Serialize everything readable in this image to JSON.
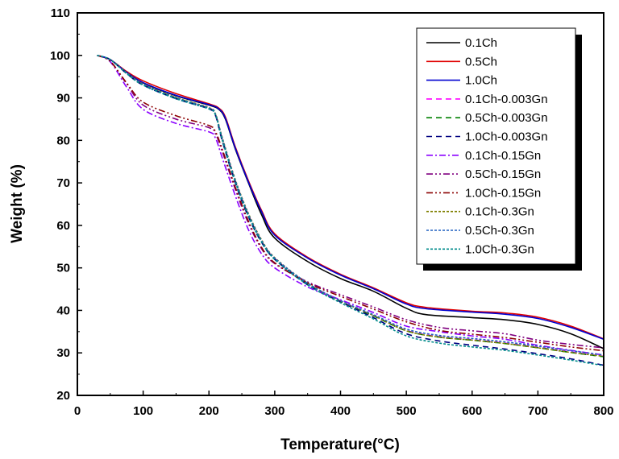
{
  "chart_data": {
    "type": "line",
    "title": "",
    "xlabel": "Temperature(°C)",
    "ylabel": "Weight (%)",
    "xlim": [
      0,
      800
    ],
    "ylim": [
      20,
      110
    ],
    "xticks": [
      "0",
      "100",
      "200",
      "300",
      "400",
      "500",
      "600",
      "700",
      "800"
    ],
    "yticks": [
      "20",
      "30",
      "40",
      "50",
      "60",
      "70",
      "80",
      "90",
      "100",
      "110"
    ],
    "grid": false,
    "legend_position": "top-right",
    "series": [
      {
        "name": "0.1Ch",
        "color": "#000000",
        "dash": "solid",
        "points": [
          [
            30,
            100
          ],
          [
            50,
            99
          ],
          [
            75,
            96
          ],
          [
            100,
            93.5
          ],
          [
            150,
            90.5
          ],
          [
            200,
            88.3
          ],
          [
            215,
            87.3
          ],
          [
            225,
            85
          ],
          [
            240,
            78
          ],
          [
            260,
            70
          ],
          [
            280,
            62.5
          ],
          [
            300,
            57
          ],
          [
            350,
            51.5
          ],
          [
            400,
            47.5
          ],
          [
            450,
            44.5
          ],
          [
            500,
            40.5
          ],
          [
            530,
            39
          ],
          [
            600,
            38.3
          ],
          [
            650,
            37.8
          ],
          [
            700,
            36.7
          ],
          [
            750,
            34.5
          ],
          [
            800,
            31
          ]
        ]
      },
      {
        "name": "0.5Ch",
        "color": "#e00000",
        "dash": "solid",
        "points": [
          [
            30,
            100
          ],
          [
            50,
            99
          ],
          [
            75,
            96.2
          ],
          [
            100,
            94
          ],
          [
            150,
            91
          ],
          [
            200,
            88.6
          ],
          [
            215,
            87.6
          ],
          [
            225,
            85.5
          ],
          [
            240,
            78.5
          ],
          [
            260,
            70.5
          ],
          [
            280,
            63.5
          ],
          [
            300,
            58
          ],
          [
            350,
            52.5
          ],
          [
            400,
            48.5
          ],
          [
            450,
            45.3
          ],
          [
            500,
            41.8
          ],
          [
            530,
            40.7
          ],
          [
            600,
            39.8
          ],
          [
            650,
            39.4
          ],
          [
            700,
            38.4
          ],
          [
            750,
            36.3
          ],
          [
            800,
            33.3
          ]
        ]
      },
      {
        "name": "1.0Ch",
        "color": "#0000d0",
        "dash": "solid",
        "points": [
          [
            30,
            100
          ],
          [
            50,
            99
          ],
          [
            75,
            96
          ],
          [
            100,
            93.6
          ],
          [
            150,
            90.6
          ],
          [
            200,
            88.4
          ],
          [
            215,
            87.4
          ],
          [
            225,
            85.2
          ],
          [
            240,
            78.2
          ],
          [
            260,
            70.2
          ],
          [
            280,
            63.2
          ],
          [
            300,
            57.7
          ],
          [
            350,
            52.3
          ],
          [
            400,
            48.3
          ],
          [
            450,
            45.1
          ],
          [
            500,
            41.5
          ],
          [
            530,
            40.4
          ],
          [
            600,
            39.6
          ],
          [
            650,
            39.1
          ],
          [
            700,
            38.1
          ],
          [
            750,
            36
          ],
          [
            800,
            33.2
          ]
        ]
      },
      {
        "name": "0.1Ch-0.003Gn",
        "color": "#ff00ff",
        "dash": "dashed",
        "points": [
          [
            30,
            100
          ],
          [
            50,
            99
          ],
          [
            75,
            95.8
          ],
          [
            100,
            93.2
          ],
          [
            150,
            90
          ],
          [
            200,
            87.6
          ],
          [
            210,
            86
          ],
          [
            220,
            80.5
          ],
          [
            240,
            70.5
          ],
          [
            260,
            62.5
          ],
          [
            280,
            56.3
          ],
          [
            300,
            52.2
          ],
          [
            350,
            46.3
          ],
          [
            400,
            42.2
          ],
          [
            450,
            38.8
          ],
          [
            500,
            35.3
          ],
          [
            550,
            33.8
          ],
          [
            600,
            33.1
          ],
          [
            650,
            32.3
          ],
          [
            700,
            31.3
          ],
          [
            750,
            30.2
          ],
          [
            800,
            29.2
          ]
        ]
      },
      {
        "name": "0.5Ch-0.003Gn",
        "color": "#008000",
        "dash": "dashed",
        "points": [
          [
            30,
            100
          ],
          [
            50,
            99
          ],
          [
            75,
            95.8
          ],
          [
            100,
            93.1
          ],
          [
            150,
            90
          ],
          [
            200,
            87.5
          ],
          [
            210,
            86
          ],
          [
            220,
            80.3
          ],
          [
            240,
            70.3
          ],
          [
            260,
            62.3
          ],
          [
            280,
            56.2
          ],
          [
            300,
            52.1
          ],
          [
            350,
            46.2
          ],
          [
            400,
            42.1
          ],
          [
            450,
            38.7
          ],
          [
            500,
            35.2
          ],
          [
            550,
            33.7
          ],
          [
            600,
            33
          ],
          [
            650,
            32.2
          ],
          [
            700,
            31.2
          ],
          [
            750,
            30.1
          ],
          [
            800,
            29.1
          ]
        ]
      },
      {
        "name": "1.0Ch-0.003Gn",
        "color": "#000080",
        "dash": "dashed",
        "points": [
          [
            30,
            100
          ],
          [
            50,
            99
          ],
          [
            75,
            95.7
          ],
          [
            100,
            93
          ],
          [
            150,
            89.8
          ],
          [
            200,
            87.4
          ],
          [
            210,
            85.8
          ],
          [
            220,
            80
          ],
          [
            240,
            70
          ],
          [
            260,
            62
          ],
          [
            280,
            56
          ],
          [
            300,
            52
          ],
          [
            350,
            46
          ],
          [
            400,
            42
          ],
          [
            450,
            38.3
          ],
          [
            500,
            34.5
          ],
          [
            550,
            32.8
          ],
          [
            600,
            31.8
          ],
          [
            650,
            30.9
          ],
          [
            700,
            29.8
          ],
          [
            750,
            28.6
          ],
          [
            800,
            27.1
          ]
        ]
      },
      {
        "name": "0.1Ch-0.15Gn",
        "color": "#8b00ff",
        "dash": "dashdot",
        "points": [
          [
            30,
            100
          ],
          [
            50,
            98.5
          ],
          [
            75,
            92.5
          ],
          [
            100,
            87.3
          ],
          [
            150,
            84
          ],
          [
            200,
            82
          ],
          [
            210,
            80.5
          ],
          [
            220,
            76
          ],
          [
            240,
            67
          ],
          [
            260,
            59
          ],
          [
            280,
            53.3
          ],
          [
            300,
            50
          ],
          [
            350,
            45.5
          ],
          [
            400,
            42.5
          ],
          [
            450,
            39.5
          ],
          [
            500,
            36.3
          ],
          [
            550,
            35
          ],
          [
            600,
            34
          ],
          [
            650,
            33.2
          ],
          [
            700,
            31.8
          ],
          [
            750,
            30.6
          ],
          [
            800,
            29.5
          ]
        ]
      },
      {
        "name": "0.5Ch-0.15Gn",
        "color": "#800080",
        "dash": "dashdotdot",
        "points": [
          [
            30,
            100
          ],
          [
            50,
            98.6
          ],
          [
            75,
            93.3
          ],
          [
            100,
            88.3
          ],
          [
            150,
            85
          ],
          [
            200,
            83
          ],
          [
            210,
            81.5
          ],
          [
            220,
            77.5
          ],
          [
            240,
            68.5
          ],
          [
            260,
            60.5
          ],
          [
            280,
            54.5
          ],
          [
            300,
            51
          ],
          [
            350,
            46.7
          ],
          [
            400,
            43.7
          ],
          [
            450,
            40.8
          ],
          [
            500,
            37.8
          ],
          [
            550,
            36
          ],
          [
            600,
            35.2
          ],
          [
            650,
            34.5
          ],
          [
            700,
            33
          ],
          [
            750,
            32
          ],
          [
            800,
            31.2
          ]
        ]
      },
      {
        "name": "1.0Ch-0.15Gn",
        "color": "#8b0000",
        "dash": "dashdotdot",
        "points": [
          [
            30,
            100
          ],
          [
            50,
            98.6
          ],
          [
            75,
            93.5
          ],
          [
            100,
            89
          ],
          [
            150,
            85.8
          ],
          [
            200,
            83.5
          ],
          [
            210,
            82
          ],
          [
            220,
            78
          ],
          [
            240,
            69
          ],
          [
            260,
            61
          ],
          [
            280,
            54.8
          ],
          [
            300,
            51.2
          ],
          [
            350,
            46.5
          ],
          [
            400,
            43.3
          ],
          [
            450,
            40.3
          ],
          [
            500,
            37.3
          ],
          [
            550,
            35.3
          ],
          [
            600,
            34.4
          ],
          [
            650,
            33.6
          ],
          [
            700,
            32.5
          ],
          [
            750,
            31.4
          ],
          [
            800,
            30.5
          ]
        ]
      },
      {
        "name": "0.1Ch-0.3Gn",
        "color": "#808000",
        "dash": "dotted",
        "points": [
          [
            30,
            100
          ],
          [
            50,
            99
          ],
          [
            75,
            95.9
          ],
          [
            100,
            93.3
          ],
          [
            150,
            90.1
          ],
          [
            200,
            87.7
          ],
          [
            210,
            86.2
          ],
          [
            220,
            80.8
          ],
          [
            240,
            70.8
          ],
          [
            260,
            62.8
          ],
          [
            280,
            56.6
          ],
          [
            300,
            52.4
          ],
          [
            350,
            46.4
          ],
          [
            400,
            42.2
          ],
          [
            450,
            38.8
          ],
          [
            500,
            35.2
          ],
          [
            550,
            33.7
          ],
          [
            600,
            33
          ],
          [
            650,
            32.2
          ],
          [
            700,
            31.2
          ],
          [
            750,
            30.1
          ],
          [
            800,
            29.2
          ]
        ]
      },
      {
        "name": "0.5Ch-0.3Gn",
        "color": "#2060c0",
        "dash": "dotted",
        "points": [
          [
            30,
            100
          ],
          [
            50,
            99
          ],
          [
            75,
            95.8
          ],
          [
            100,
            93.2
          ],
          [
            150,
            90
          ],
          [
            200,
            87.6
          ],
          [
            210,
            86.1
          ],
          [
            220,
            80.6
          ],
          [
            240,
            70.6
          ],
          [
            260,
            62.6
          ],
          [
            280,
            56.4
          ],
          [
            300,
            52.3
          ],
          [
            350,
            46.4
          ],
          [
            400,
            42.3
          ],
          [
            450,
            39
          ],
          [
            500,
            35.6
          ],
          [
            550,
            34.1
          ],
          [
            600,
            33.4
          ],
          [
            650,
            32.6
          ],
          [
            700,
            31.6
          ],
          [
            750,
            30.5
          ],
          [
            800,
            29.5
          ]
        ]
      },
      {
        "name": "1.0Ch-0.3Gn",
        "color": "#008b8b",
        "dash": "dotted",
        "points": [
          [
            30,
            100
          ],
          [
            50,
            99
          ],
          [
            75,
            95.7
          ],
          [
            100,
            93
          ],
          [
            150,
            89.8
          ],
          [
            200,
            87.4
          ],
          [
            210,
            85.9
          ],
          [
            220,
            80.2
          ],
          [
            240,
            70.2
          ],
          [
            260,
            62.2
          ],
          [
            280,
            56.1
          ],
          [
            300,
            52
          ],
          [
            350,
            46
          ],
          [
            400,
            41.8
          ],
          [
            450,
            38
          ],
          [
            500,
            34
          ],
          [
            550,
            32.3
          ],
          [
            600,
            31.4
          ],
          [
            650,
            30.6
          ],
          [
            700,
            29.5
          ],
          [
            750,
            28.3
          ],
          [
            800,
            27
          ]
        ]
      }
    ]
  }
}
